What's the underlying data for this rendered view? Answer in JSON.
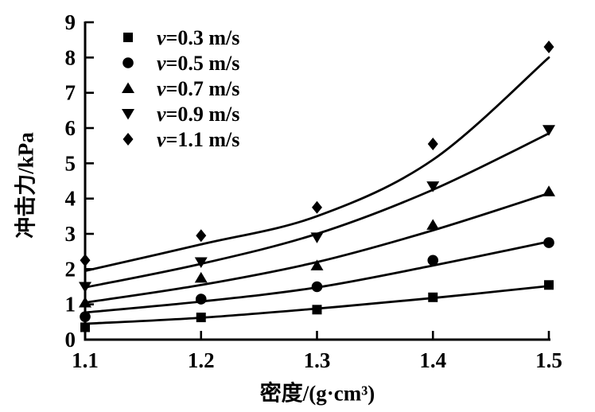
{
  "chart_data": {
    "type": "scatter",
    "title": "",
    "xlabel": "密度/(g·cm³)",
    "ylabel": "冲击力/kPa",
    "xlim": [
      1.1,
      1.5
    ],
    "ylim": [
      0,
      9
    ],
    "grid": false,
    "legend_position": "top-left-inside",
    "x_ticks": [
      "1.1",
      "1.2",
      "1.3",
      "1.4",
      "1.5"
    ],
    "y_ticks": [
      "0",
      "1",
      "2",
      "3",
      "4",
      "5",
      "6",
      "7",
      "8",
      "9"
    ],
    "x": [
      1.1,
      1.2,
      1.3,
      1.4,
      1.5
    ],
    "series": [
      {
        "name": "v=0.3 m/s",
        "marker": "square",
        "values": [
          0.35,
          0.63,
          0.85,
          1.2,
          1.55
        ],
        "fit": [
          0.45,
          0.62,
          0.88,
          1.18,
          1.52
        ]
      },
      {
        "name": "v=0.5 m/s",
        "marker": "circle",
        "values": [
          0.65,
          1.15,
          1.5,
          2.25,
          2.75
        ],
        "fit": [
          0.77,
          1.08,
          1.48,
          2.1,
          2.78
        ]
      },
      {
        "name": "v=0.7 m/s",
        "marker": "triangle-up",
        "values": [
          1.05,
          1.75,
          2.1,
          3.25,
          4.2
        ],
        "fit": [
          1.05,
          1.55,
          2.2,
          3.1,
          4.15
        ]
      },
      {
        "name": "v=0.9 m/s",
        "marker": "triangle-down",
        "values": [
          1.5,
          2.2,
          2.9,
          4.35,
          5.95
        ],
        "fit": [
          1.48,
          2.15,
          3.0,
          4.25,
          5.85
        ]
      },
      {
        "name": "v=1.1 m/s",
        "marker": "diamond",
        "values": [
          2.25,
          2.95,
          3.75,
          5.55,
          8.3
        ],
        "fit": [
          1.95,
          2.7,
          3.5,
          5.1,
          8.0
        ]
      }
    ],
    "colors": {
      "stroke": "#000000",
      "background": "#ffffff"
    }
  }
}
